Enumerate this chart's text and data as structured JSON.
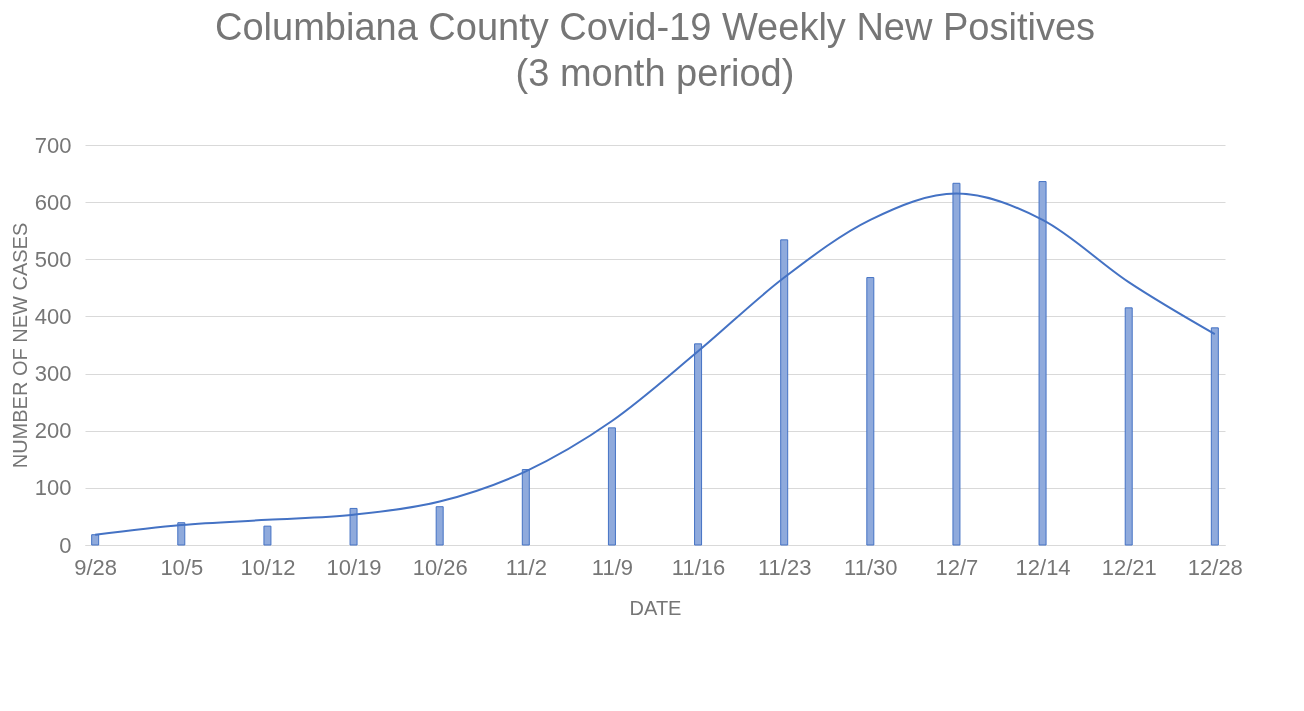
{
  "chart_data": {
    "type": "bar",
    "title": "Columbiana County Covid-19 Weekly New Positives\n(3 month period)",
    "xlabel": "DATE",
    "ylabel": "NUMBER OF NEW CASES",
    "categories": [
      "9/28",
      "10/5",
      "10/12",
      "10/19",
      "10/26",
      "11/2",
      "11/9",
      "11/16",
      "11/23",
      "11/30",
      "12/7",
      "12/14",
      "12/21",
      "12/28"
    ],
    "series": [
      {
        "color": "#8faadc",
        "values": [
          18,
          39,
          33,
          64,
          67,
          132,
          205,
          352,
          534,
          468,
          633,
          636,
          415,
          380
        ]
      },
      {
        "type": "line",
        "color": "#4472c4",
        "values": [
          18,
          35,
          44,
          53,
          76,
          129,
          217,
          339,
          468,
          569,
          615,
          569,
          460,
          369
        ]
      }
    ],
    "ylim": [
      0,
      700
    ],
    "yticks": [
      0,
      100,
      200,
      300,
      400,
      500,
      600,
      700
    ],
    "grid": "y"
  }
}
